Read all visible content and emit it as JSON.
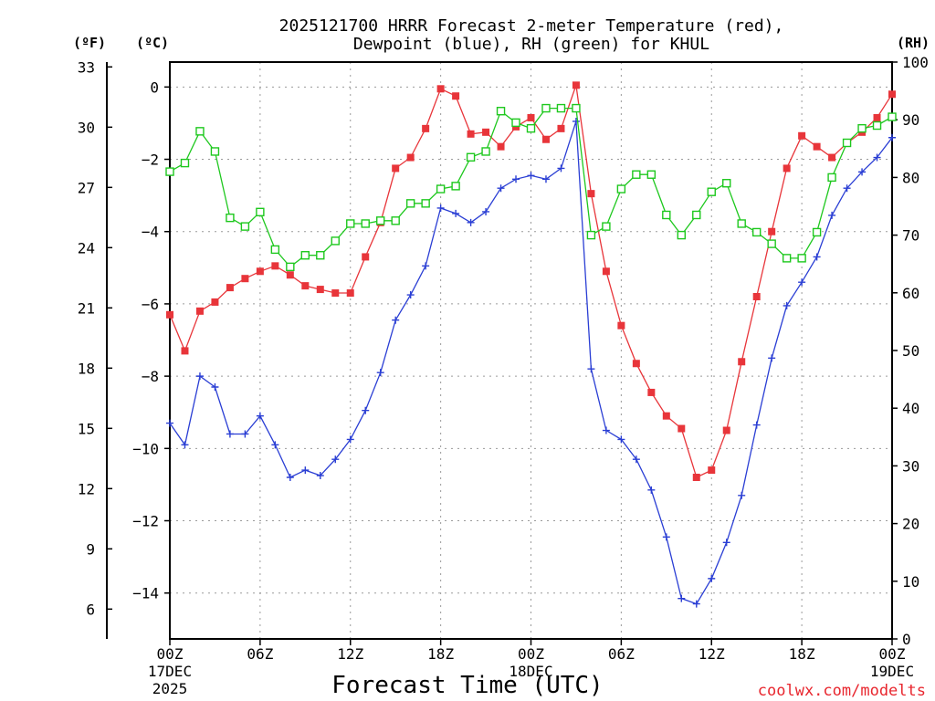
{
  "chart_data": {
    "type": "line",
    "title_line1": "2025121700 HRRR Forecast 2-meter Temperature (red),",
    "title_line2": "Dewpoint (blue), RH (green) for KHUL",
    "xlabel": "Forecast Time (UTC)",
    "credit": "coolwx.com/modelts",
    "left_unit_f": "(ºF)",
    "left_unit_c": "(ºC)",
    "right_unit": "(RH)",
    "x_unit": "forecast hour",
    "xlim": [
      0,
      48
    ],
    "ylim_c": [
      -15.27,
      0.69
    ],
    "ylim_rh": [
      0,
      100
    ],
    "y_ticks_c": [
      "0",
      "−2",
      "−4",
      "−6",
      "−8",
      "−10",
      "−12",
      "−14"
    ],
    "y_ticks_c_values": [
      0,
      -2,
      -4,
      -6,
      -8,
      -10,
      -12,
      -14
    ],
    "y_ticks_f": [
      "33",
      "30",
      "27",
      "24",
      "21",
      "18",
      "15",
      "12",
      "9",
      "6"
    ],
    "y_ticks_f_values": [
      33,
      30,
      27,
      24,
      21,
      18,
      15,
      12,
      9,
      6
    ],
    "y_ticks_rh": [
      "100",
      "90",
      "80",
      "70",
      "60",
      "50",
      "40",
      "30",
      "20",
      "10",
      "0"
    ],
    "y_ticks_rh_values": [
      100,
      90,
      80,
      70,
      60,
      50,
      40,
      30,
      20,
      10,
      0
    ],
    "x_ticks": [
      {
        "hour": 0,
        "line1": "00Z",
        "line2": "17DEC",
        "line3": "2025"
      },
      {
        "hour": 6,
        "line1": "06Z",
        "line2": "",
        "line3": ""
      },
      {
        "hour": 12,
        "line1": "12Z",
        "line2": "",
        "line3": ""
      },
      {
        "hour": 18,
        "line1": "18Z",
        "line2": "",
        "line3": ""
      },
      {
        "hour": 24,
        "line1": "00Z",
        "line2": "18DEC",
        "line3": ""
      },
      {
        "hour": 30,
        "line1": "06Z",
        "line2": "",
        "line3": ""
      },
      {
        "hour": 36,
        "line1": "12Z",
        "line2": "",
        "line3": ""
      },
      {
        "hour": 42,
        "line1": "18Z",
        "line2": "",
        "line3": ""
      },
      {
        "hour": 48,
        "line1": "00Z",
        "line2": "19DEC",
        "line3": ""
      }
    ],
    "series": [
      {
        "name": "Temperature",
        "units": "°C",
        "color": "#e8353a",
        "marker": "filled-square",
        "x": [
          0,
          1,
          2,
          3,
          4,
          5,
          6,
          7,
          8,
          9,
          10,
          11,
          12,
          13,
          14,
          15,
          16,
          17,
          18,
          19,
          20,
          21,
          22,
          23,
          24,
          25,
          26,
          27,
          28,
          29,
          30,
          31,
          32,
          33,
          34,
          35,
          36,
          37,
          38,
          39,
          40,
          41,
          42,
          43,
          44,
          45,
          46,
          47,
          48
        ],
        "values": [
          -6.3,
          -7.3,
          -6.2,
          -5.95,
          -5.55,
          -5.3,
          -5.1,
          -4.95,
          -5.2,
          -5.5,
          -5.6,
          -5.7,
          -5.7,
          -4.7,
          -3.75,
          -2.25,
          -1.95,
          -1.15,
          -0.05,
          -0.25,
          -1.3,
          -1.25,
          -1.65,
          -1.1,
          -0.85,
          -1.45,
          -1.15,
          0.05,
          -2.95,
          -5.1,
          -6.6,
          -7.65,
          -8.45,
          -9.1,
          -9.45,
          -10.8,
          -10.6,
          -9.5,
          -7.6,
          -5.8,
          -4.0,
          -2.25,
          -1.35,
          -1.65,
          -1.95,
          -1.55,
          -1.25,
          -0.85,
          -0.2
        ]
      },
      {
        "name": "Dewpoint",
        "units": "°C",
        "color": "#2a3ed4",
        "marker": "plus",
        "x": [
          0,
          1,
          2,
          3,
          4,
          5,
          6,
          7,
          8,
          9,
          10,
          11,
          12,
          13,
          14,
          15,
          16,
          17,
          18,
          19,
          20,
          21,
          22,
          23,
          24,
          25,
          26,
          27,
          28,
          29,
          30,
          31,
          32,
          33,
          34,
          35,
          36,
          37,
          38,
          39,
          40,
          41,
          42,
          43,
          44,
          45,
          46,
          47,
          48
        ],
        "values": [
          -9.3,
          -9.9,
          -8.0,
          -8.3,
          -9.6,
          -9.6,
          -9.1,
          -9.9,
          -10.8,
          -10.6,
          -10.75,
          -10.3,
          -9.75,
          -8.95,
          -7.9,
          -6.45,
          -5.75,
          -4.95,
          -3.35,
          -3.5,
          -3.75,
          -3.45,
          -2.8,
          -2.55,
          -2.45,
          -2.55,
          -2.25,
          -0.95,
          -7.8,
          -9.5,
          -9.75,
          -10.3,
          -11.15,
          -12.45,
          -14.15,
          -14.3,
          -13.6,
          -12.6,
          -11.3,
          -9.35,
          -7.5,
          -6.05,
          -5.4,
          -4.7,
          -3.55,
          -2.8,
          -2.35,
          -1.95,
          -1.4
        ]
      },
      {
        "name": "RH",
        "units": "%",
        "color": "#1ec81e",
        "marker": "open-square",
        "x": [
          0,
          1,
          2,
          3,
          4,
          5,
          6,
          7,
          8,
          9,
          10,
          11,
          12,
          13,
          14,
          15,
          16,
          17,
          18,
          19,
          20,
          21,
          22,
          23,
          24,
          25,
          26,
          27,
          28,
          29,
          30,
          31,
          32,
          33,
          34,
          35,
          36,
          37,
          38,
          39,
          40,
          41,
          42,
          43,
          44,
          45,
          46,
          47,
          48
        ],
        "values": [
          81,
          82.5,
          88,
          84.5,
          73,
          71.5,
          74,
          67.5,
          64.5,
          66.5,
          66.5,
          69,
          72,
          72,
          72.5,
          72.5,
          75.5,
          75.5,
          78,
          78.5,
          83.5,
          84.5,
          91.5,
          89.5,
          88.5,
          92,
          92,
          92,
          70,
          71.5,
          78,
          80.5,
          80.5,
          73.5,
          70,
          73.5,
          77.5,
          79,
          72,
          70.5,
          68.5,
          66,
          66,
          70.5,
          80,
          86,
          88.5,
          89,
          90.5
        ]
      }
    ]
  }
}
